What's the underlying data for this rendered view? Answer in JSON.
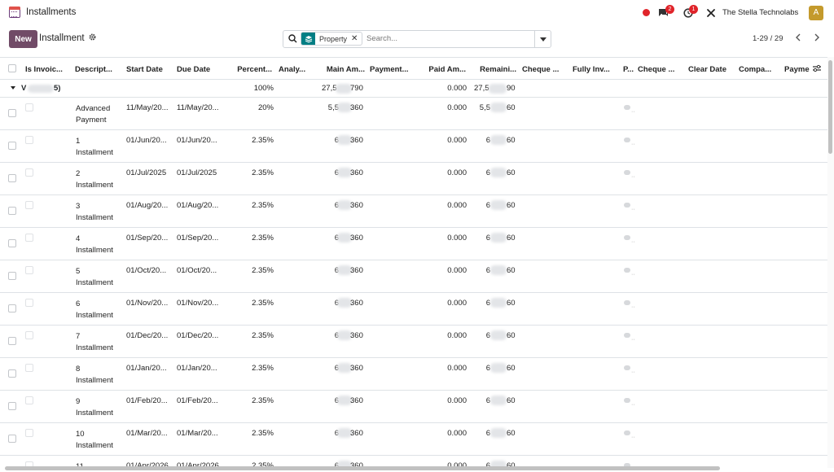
{
  "app": {
    "title": "Installments",
    "company": "The Stella Technolabs",
    "avatar_letter": "A",
    "activity_badge": "1",
    "messages_badge": "2",
    "status_color": "#e0242a",
    "brand_color": "#714b67",
    "facet_color": "#017e84"
  },
  "icons": [
    "calendar-icon",
    "chat-icon",
    "clock-icon",
    "tools-icon",
    "gear-icon",
    "search-icon",
    "layers-icon",
    "chevron-left-icon",
    "chevron-right-icon",
    "column-settings-icon"
  ],
  "toolbar": {
    "new_label": "New",
    "breadcrumb": "Installment"
  },
  "search": {
    "facet_label": "Property",
    "placeholder": "Search..."
  },
  "pager": {
    "text": "1-29 / 29"
  },
  "table": {
    "columns": [
      "Is Invoic...",
      "Descript...",
      "Start Date",
      "Due Date",
      "Percent...",
      "Analy...",
      "Main Am...",
      "Payment...",
      "Paid Am...",
      "Remaini...",
      "Cheque ...",
      "Fully Inv...",
      "P...",
      "Cheque ...",
      "Clear Date",
      "Compa...",
      "Payme"
    ],
    "group": {
      "name_start": "V",
      "name_end": "5)",
      "percent": "100%",
      "main_amount_start": "27,5",
      "main_amount_end": "790",
      "paid_amount": "0.000",
      "remaining_start": "27,5",
      "remaining_end": "90"
    },
    "rows": [
      {
        "desc_1": "Advanced",
        "desc_2": "Payment",
        "start": "11/May/20...",
        "due": "11/May/20...",
        "percent": "20%",
        "main_start": "5,5",
        "main_end": "360",
        "paid": "0.000",
        "rem_start": "5,5",
        "rem_end": "60"
      },
      {
        "desc_1": "1",
        "desc_2": "Installment",
        "start": "01/Jun/20...",
        "due": "01/Jun/20...",
        "percent": "2.35%",
        "main_start": "6",
        "main_end": "360",
        "paid": "0.000",
        "rem_start": "6",
        "rem_end": "60"
      },
      {
        "desc_1": "2",
        "desc_2": "Installment",
        "start": "01/Jul/2025",
        "due": "01/Jul/2025",
        "percent": "2.35%",
        "main_start": "6",
        "main_end": "360",
        "paid": "0.000",
        "rem_start": "6",
        "rem_end": "60"
      },
      {
        "desc_1": "3",
        "desc_2": "Installment",
        "start": "01/Aug/20...",
        "due": "01/Aug/20...",
        "percent": "2.35%",
        "main_start": "6",
        "main_end": "360",
        "paid": "0.000",
        "rem_start": "6",
        "rem_end": "60"
      },
      {
        "desc_1": "4",
        "desc_2": "Installment",
        "start": "01/Sep/20...",
        "due": "01/Sep/20...",
        "percent": "2.35%",
        "main_start": "6",
        "main_end": "360",
        "paid": "0.000",
        "rem_start": "6",
        "rem_end": "60"
      },
      {
        "desc_1": "5",
        "desc_2": "Installment",
        "start": "01/Oct/20...",
        "due": "01/Oct/20...",
        "percent": "2.35%",
        "main_start": "6",
        "main_end": "360",
        "paid": "0.000",
        "rem_start": "6",
        "rem_end": "60"
      },
      {
        "desc_1": "6",
        "desc_2": "Installment",
        "start": "01/Nov/20...",
        "due": "01/Nov/20...",
        "percent": "2.35%",
        "main_start": "6",
        "main_end": "360",
        "paid": "0.000",
        "rem_start": "6",
        "rem_end": "60"
      },
      {
        "desc_1": "7",
        "desc_2": "Installment",
        "start": "01/Dec/20...",
        "due": "01/Dec/20...",
        "percent": "2.35%",
        "main_start": "6",
        "main_end": "360",
        "paid": "0.000",
        "rem_start": "6",
        "rem_end": "60"
      },
      {
        "desc_1": "8",
        "desc_2": "Installment",
        "start": "01/Jan/20...",
        "due": "01/Jan/20...",
        "percent": "2.35%",
        "main_start": "6",
        "main_end": "360",
        "paid": "0.000",
        "rem_start": "6",
        "rem_end": "60"
      },
      {
        "desc_1": "9",
        "desc_2": "Installment",
        "start": "01/Feb/20...",
        "due": "01/Feb/20...",
        "percent": "2.35%",
        "main_start": "6",
        "main_end": "360",
        "paid": "0.000",
        "rem_start": "6",
        "rem_end": "60"
      },
      {
        "desc_1": "10",
        "desc_2": "Installment",
        "start": "01/Mar/20...",
        "due": "01/Mar/20...",
        "percent": "2.35%",
        "main_start": "6",
        "main_end": "360",
        "paid": "0.000",
        "rem_start": "6",
        "rem_end": "60"
      },
      {
        "desc_1": "11",
        "desc_2": "",
        "start": "01/Apr/2026",
        "due": "01/Apr/2026",
        "percent": "2.35%",
        "main_start": "6",
        "main_end": "360",
        "paid": "0.000",
        "rem_start": "6",
        "rem_end": "60"
      }
    ]
  }
}
